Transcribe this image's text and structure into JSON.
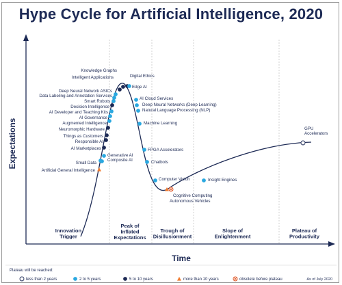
{
  "chart_data": {
    "type": "scatter",
    "title": "Hype Cycle for Artificial Intelligence, 2020",
    "xlabel": "Time",
    "ylabel": "Expectations",
    "phases": [
      "Innovation Trigger",
      "Peak of Inflated Expectations",
      "Trough of Disillusionment",
      "Slope of Enlightenment",
      "Plateau of Productivity"
    ],
    "legend_title": "Plateau will be reached:",
    "legend": [
      {
        "key": "lt2",
        "label": "less than 2 years",
        "color": "#ffffff"
      },
      {
        "key": "2to5",
        "label": "2 to 5 years",
        "color": "#2aa8e0"
      },
      {
        "key": "5to10",
        "label": "5 to 10 years",
        "color": "#1d2a55"
      },
      {
        "key": "gt10",
        "label": "more than 10 years",
        "color": "#f07b2e"
      },
      {
        "key": "obs",
        "label": "obsolete before plateau",
        "color": "#e05a2a"
      }
    ],
    "as_of": "As of July 2020",
    "technologies": [
      {
        "name": "Knowledge Graphs",
        "category": "5to10"
      },
      {
        "name": "Intelligent Applications",
        "category": "5to10"
      },
      {
        "name": "Digital Ethics",
        "category": "5to10"
      },
      {
        "name": "Edge AI",
        "category": "2to5"
      },
      {
        "name": "Deep Neural Network ASICs",
        "category": "2to5"
      },
      {
        "name": "Data Labeling and Annotation Services",
        "category": "2to5"
      },
      {
        "name": "Smart Robots",
        "category": "2to5"
      },
      {
        "name": "Decision Intelligence",
        "category": "5to10"
      },
      {
        "name": "AI Developer and Teaching Kits",
        "category": "2to5"
      },
      {
        "name": "AI Governance",
        "category": "2to5"
      },
      {
        "name": "Augmented Intelligence",
        "category": "2to5"
      },
      {
        "name": "Neuromorphic Hardware",
        "category": "5to10"
      },
      {
        "name": "Things as Customers",
        "category": "5to10"
      },
      {
        "name": "Responsible AI",
        "category": "5to10"
      },
      {
        "name": "AI Marketplaces",
        "category": "5to10"
      },
      {
        "name": "Small Data",
        "category": "2to5"
      },
      {
        "name": "Artificial General Intelligence",
        "category": "gt10"
      },
      {
        "name": "Generative AI",
        "category": "2to5"
      },
      {
        "name": "Composite AI",
        "category": "2to5"
      },
      {
        "name": "AI Cloud Services",
        "category": "2to5"
      },
      {
        "name": "Deep Neural Networks (Deep Learning)",
        "category": "2to5"
      },
      {
        "name": "Natural Language Processing (NLP)",
        "category": "2to5"
      },
      {
        "name": "Machine Learning",
        "category": "2to5"
      },
      {
        "name": "FPGA Accelerators",
        "category": "2to5"
      },
      {
        "name": "Chatbots",
        "category": "2to5"
      },
      {
        "name": "Computer Vision",
        "category": "2to5"
      },
      {
        "name": "Cognitive Computing",
        "category": "obs"
      },
      {
        "name": "Autonomous Vehicles",
        "category": "gt10"
      },
      {
        "name": "Insight Engines",
        "category": "2to5"
      },
      {
        "name": "GPU Accelerators",
        "category": "lt2"
      }
    ]
  }
}
